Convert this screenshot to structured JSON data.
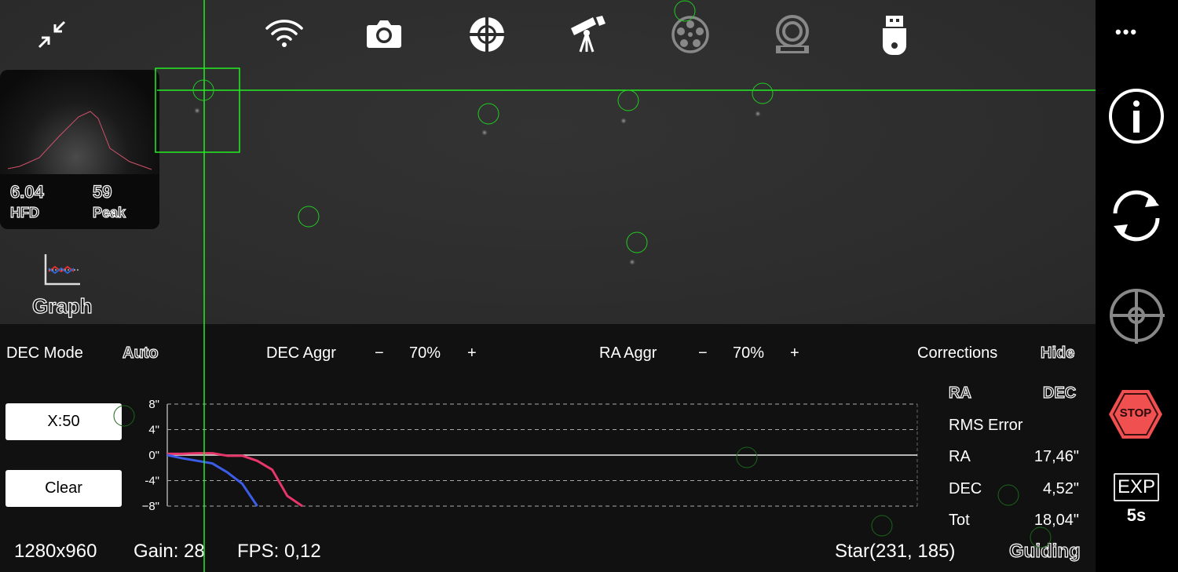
{
  "toolbar": {
    "icons": [
      "compress-icon",
      "wifi-icon",
      "camera-icon",
      "guide-target-icon",
      "telescope-icon",
      "filter-wheel-icon",
      "focuser-icon",
      "usb-storage-icon"
    ]
  },
  "star_profile": {
    "hfd_value": "6.04",
    "hfd_label": "HFD",
    "peak_value": "59",
    "peak_label": "Peak"
  },
  "graph_button": {
    "label": "Graph"
  },
  "settings": {
    "dec_mode_label": "DEC Mode",
    "dec_mode_value": "Auto",
    "dec_aggr_label": "DEC Aggr",
    "dec_aggr_value": "70%",
    "ra_aggr_label": "RA Aggr",
    "ra_aggr_value": "70%",
    "minus": "−",
    "plus": "+",
    "corrections_label": "Corrections",
    "corrections_value": "Hide"
  },
  "buttons": {
    "x_scale": "X:50",
    "clear": "Clear"
  },
  "stats": {
    "ra_header": "RA",
    "dec_header": "DEC",
    "rms_label": "RMS Error",
    "rows": [
      {
        "label": "RA",
        "value": "17,46\""
      },
      {
        "label": "DEC",
        "value": "4,52\""
      },
      {
        "label": "Tot",
        "value": "18,04\""
      }
    ]
  },
  "status": {
    "resolution": "1280x960",
    "gain": "Gain: 28",
    "fps": "FPS: 0,12",
    "star": "Star(231, 185)",
    "state": "Guiding"
  },
  "sidebar": {
    "more": "•••",
    "stop_label": "STOP",
    "exp_label": "EXP",
    "exp_value": "5s"
  },
  "colors": {
    "crosshair": "#22ee22",
    "ra_series": "#e8356a",
    "dec_series": "#3b5de8",
    "stop": "#f05050"
  },
  "chart_data": {
    "type": "line",
    "x_range": [
      0,
      50
    ],
    "ylim": [
      -8,
      8
    ],
    "y_ticks": [
      "8\"",
      "4\"",
      "0\"",
      "-4\"",
      "−8\""
    ],
    "y_tick_values": [
      8,
      4,
      0,
      -4,
      -8
    ],
    "grid": true,
    "series": [
      {
        "color": "#e8356a",
        "x": [
          0,
          1,
          2,
          3,
          4,
          5,
          6,
          7,
          8,
          9
        ],
        "values": [
          0.2,
          0.2,
          0.3,
          0.3,
          -0.1,
          -0.1,
          -0.9,
          -2.3,
          -6.4,
          -8
        ]
      },
      {
        "color": "#3b5de8",
        "x": [
          0,
          1,
          2,
          3,
          4,
          5,
          6
        ],
        "values": [
          0,
          -0.5,
          -0.9,
          -1.3,
          -2.7,
          -4.5,
          -8
        ]
      }
    ]
  }
}
